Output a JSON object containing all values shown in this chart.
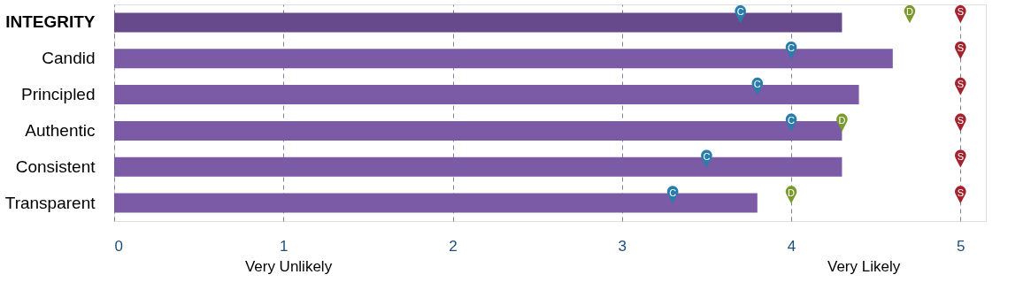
{
  "chart_data": {
    "type": "bar",
    "orientation": "horizontal",
    "categories": [
      "INTEGRITY",
      "Candid",
      "Principled",
      "Authentic",
      "Consistent",
      "Transparent"
    ],
    "series": [
      {
        "colors": [
          "#664a8c",
          "#7b5aa6",
          "#7b5aa6",
          "#7b5aa6",
          "#7b5aa6",
          "#7b5aa6"
        ],
        "values": [
          4.3,
          4.6,
          4.4,
          4.3,
          4.3,
          3.8
        ]
      },
      {
        "type": "scatter",
        "name": "C",
        "color": "#2a7dab",
        "values": [
          3.7,
          4.0,
          3.8,
          4.0,
          3.5,
          3.3
        ]
      },
      {
        "type": "scatter",
        "name": "D",
        "color": "#7a9a2e",
        "values": [
          4.7,
          null,
          null,
          4.3,
          null,
          4.0
        ]
      },
      {
        "type": "scatter",
        "name": "S",
        "color": "#a3242f",
        "values": [
          5,
          5,
          5,
          5,
          5,
          5
        ]
      }
    ],
    "xlim": [
      0,
      5.15
    ],
    "xticks": [
      0,
      1,
      2,
      3,
      4,
      5
    ],
    "grid": "x",
    "annotations": [
      "Very Unlikely",
      "Very Likely"
    ]
  }
}
